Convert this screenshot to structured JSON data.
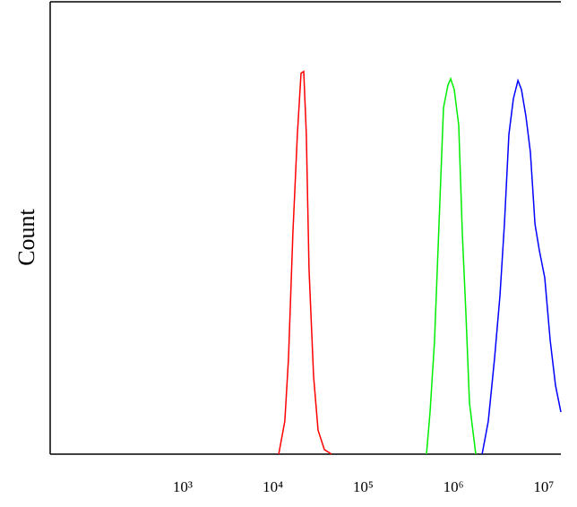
{
  "chart_data": {
    "type": "line",
    "y_label": "Count",
    "x_scale": "log",
    "xlim": [
      34,
      15500000
    ],
    "ylim": [
      0,
      100
    ],
    "xticks": [
      {
        "value": 1000,
        "label": "10³"
      },
      {
        "value": 10000,
        "label": "10⁴"
      },
      {
        "value": 100000,
        "label": "10⁵"
      },
      {
        "value": 1000000,
        "label": "10⁶"
      },
      {
        "value": 10000000,
        "label": "10⁷"
      }
    ],
    "series": [
      {
        "color": "#ff0000",
        "x": [
          11600,
          13550,
          14860,
          16650,
          18660,
          20460,
          21930,
          23460,
          25100,
          28180,
          31600,
          37100,
          44500
        ],
        "values": [
          0,
          7.3,
          21.2,
          48.9,
          70.7,
          84.2,
          84.6,
          70.7,
          41,
          17.2,
          5.3,
          1,
          0
        ]
      },
      {
        "color": "#00ee00",
        "x": [
          502000,
          551000,
          617000,
          692000,
          776000,
          869000,
          931000,
          1020000,
          1145000,
          1254000,
          1374000,
          1507000,
          1767000
        ],
        "values": [
          0,
          9.3,
          25.1,
          50.9,
          76.6,
          81.6,
          83,
          80.6,
          72.7,
          48.9,
          31.1,
          11.3,
          0
        ]
      },
      {
        "color": "#0000ff",
        "x": [
          2076000,
          2434000,
          2856000,
          3275000,
          3672000,
          4120000,
          4616000,
          5180000,
          5675000,
          6357000,
          7129000,
          7998000,
          8954000,
          10280000,
          11800000,
          13520000,
          15500000
        ],
        "values": [
          0,
          7.3,
          21.2,
          35,
          50.9,
          70.7,
          78.6,
          82.6,
          80.6,
          74.7,
          66.7,
          50.9,
          45,
          39,
          25.1,
          15.2,
          9.3
        ]
      }
    ]
  }
}
